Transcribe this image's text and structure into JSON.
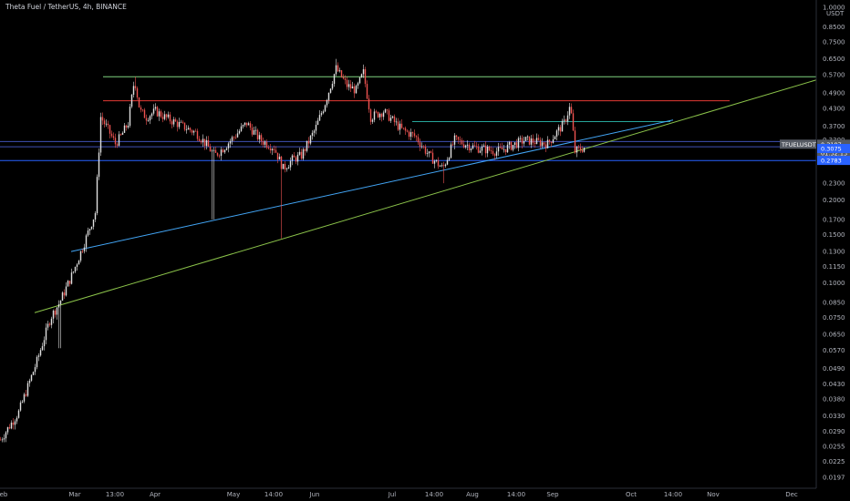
{
  "header": {
    "symbol_title": "Theta Fuel / TetherUS, 4h, BINANCE"
  },
  "chart_data": {
    "type": "candlestick",
    "title": "Theta Fuel / TetherUS, 4h, BINANCE",
    "y_scale": "log",
    "ylim": [
      0.018,
      1.0
    ],
    "y_unit_label": "USDT",
    "y_ticks": [
      "1.0000",
      "0.8500",
      "0.7500",
      "0.6500",
      "0.5700",
      "0.4900",
      "0.4300",
      "0.3700",
      "0.3300",
      "0.2900",
      "0.2300",
      "0.2000",
      "0.1700",
      "0.1500",
      "0.1300",
      "0.1150",
      "0.1000",
      "0.0850",
      "0.0750",
      "0.0650",
      "0.0570",
      "0.0490",
      "0.0430",
      "0.0380",
      "0.0330",
      "0.0290",
      "0.0255",
      "0.0225",
      "0.0197"
    ],
    "x_ticks": [
      "eb",
      "Mar",
      "13:00",
      "Apr",
      "May",
      "14:00",
      "Jun",
      "Jul",
      "14:00",
      "Aug",
      "14:00",
      "Sep",
      "Oct",
      "14:00",
      "Nov",
      "Dec"
    ],
    "price_key_points": [
      [
        0,
        0.027
      ],
      [
        20,
        0.034
      ],
      [
        40,
        0.052
      ],
      [
        55,
        0.075
      ],
      [
        65,
        0.085
      ],
      [
        80,
        0.11
      ],
      [
        92,
        0.14
      ],
      [
        104,
        0.18
      ],
      [
        110,
        0.4
      ],
      [
        118,
        0.36
      ],
      [
        126,
        0.32
      ],
      [
        132,
        0.34
      ],
      [
        140,
        0.38
      ],
      [
        147,
        0.55
      ],
      [
        153,
        0.42
      ],
      [
        160,
        0.4
      ],
      [
        170,
        0.42
      ],
      [
        180,
        0.4
      ],
      [
        200,
        0.37
      ],
      [
        215,
        0.35
      ],
      [
        225,
        0.32
      ],
      [
        235,
        0.29
      ],
      [
        245,
        0.31
      ],
      [
        260,
        0.35
      ],
      [
        270,
        0.38
      ],
      [
        285,
        0.33
      ],
      [
        300,
        0.31
      ],
      [
        310,
        0.26
      ],
      [
        320,
        0.28
      ],
      [
        330,
        0.29
      ],
      [
        345,
        0.36
      ],
      [
        355,
        0.44
      ],
      [
        368,
        0.6
      ],
      [
        380,
        0.52
      ],
      [
        390,
        0.5
      ],
      [
        398,
        0.58
      ],
      [
        406,
        0.4
      ],
      [
        420,
        0.42
      ],
      [
        440,
        0.36
      ],
      [
        455,
        0.34
      ],
      [
        470,
        0.29
      ],
      [
        485,
        0.26
      ],
      [
        498,
        0.33
      ],
      [
        520,
        0.31
      ],
      [
        545,
        0.3
      ],
      [
        575,
        0.33
      ],
      [
        600,
        0.32
      ],
      [
        618,
        0.38
      ],
      [
        625,
        0.44
      ],
      [
        630,
        0.3
      ],
      [
        640,
        0.31
      ]
    ],
    "wick_spikes": [
      {
        "x": 148,
        "high": 0.56
      },
      {
        "x": 233,
        "low": 0.17
      },
      {
        "x": 308,
        "low": 0.145
      },
      {
        "x": 368,
        "high": 0.65
      },
      {
        "x": 398,
        "high": 0.62
      },
      {
        "x": 486,
        "low": 0.23
      },
      {
        "x": 624,
        "high": 0.45
      },
      {
        "x": 65,
        "low": 0.058
      }
    ],
    "horizontal_levels": [
      {
        "price": 0.56,
        "color": "#7fd37f",
        "x_from": 113,
        "x_to": 895
      },
      {
        "price": 0.458,
        "color": "#e53935",
        "x_from": 113,
        "x_to": 800
      },
      {
        "price": 0.385,
        "color": "#26a69a",
        "x_from": 452,
        "x_to": 735
      },
      {
        "price": 0.326,
        "color": "#3f51b5",
        "x_from": 0,
        "x_to": 895
      },
      {
        "price": 0.312,
        "color": "#3f51b5",
        "x_from": 0,
        "x_to": 895
      },
      {
        "price": 0.278,
        "color": "#2962ff",
        "x_from": 0,
        "x_to": 895
      }
    ],
    "trendlines": [
      {
        "from": [
          38,
          0.078
        ],
        "to": [
          895,
          0.545
        ],
        "color": "#8bc34a"
      },
      {
        "from": [
          78,
          0.13
        ],
        "to": [
          738,
          0.39
        ],
        "color": "#42a5f5"
      }
    ],
    "price_tags": [
      {
        "label": "TFUELUSDT",
        "value": "0.3187",
        "timer": "01:32:13",
        "bg": "#555a63"
      },
      {
        "value": "0.3075",
        "bg": "#2962ff"
      },
      {
        "value": "0.2783",
        "bg": "#2962ff"
      }
    ],
    "colors": {
      "up": "#e0e0e0",
      "down": "#ef5350",
      "axis_text": "#b2b5be"
    }
  }
}
